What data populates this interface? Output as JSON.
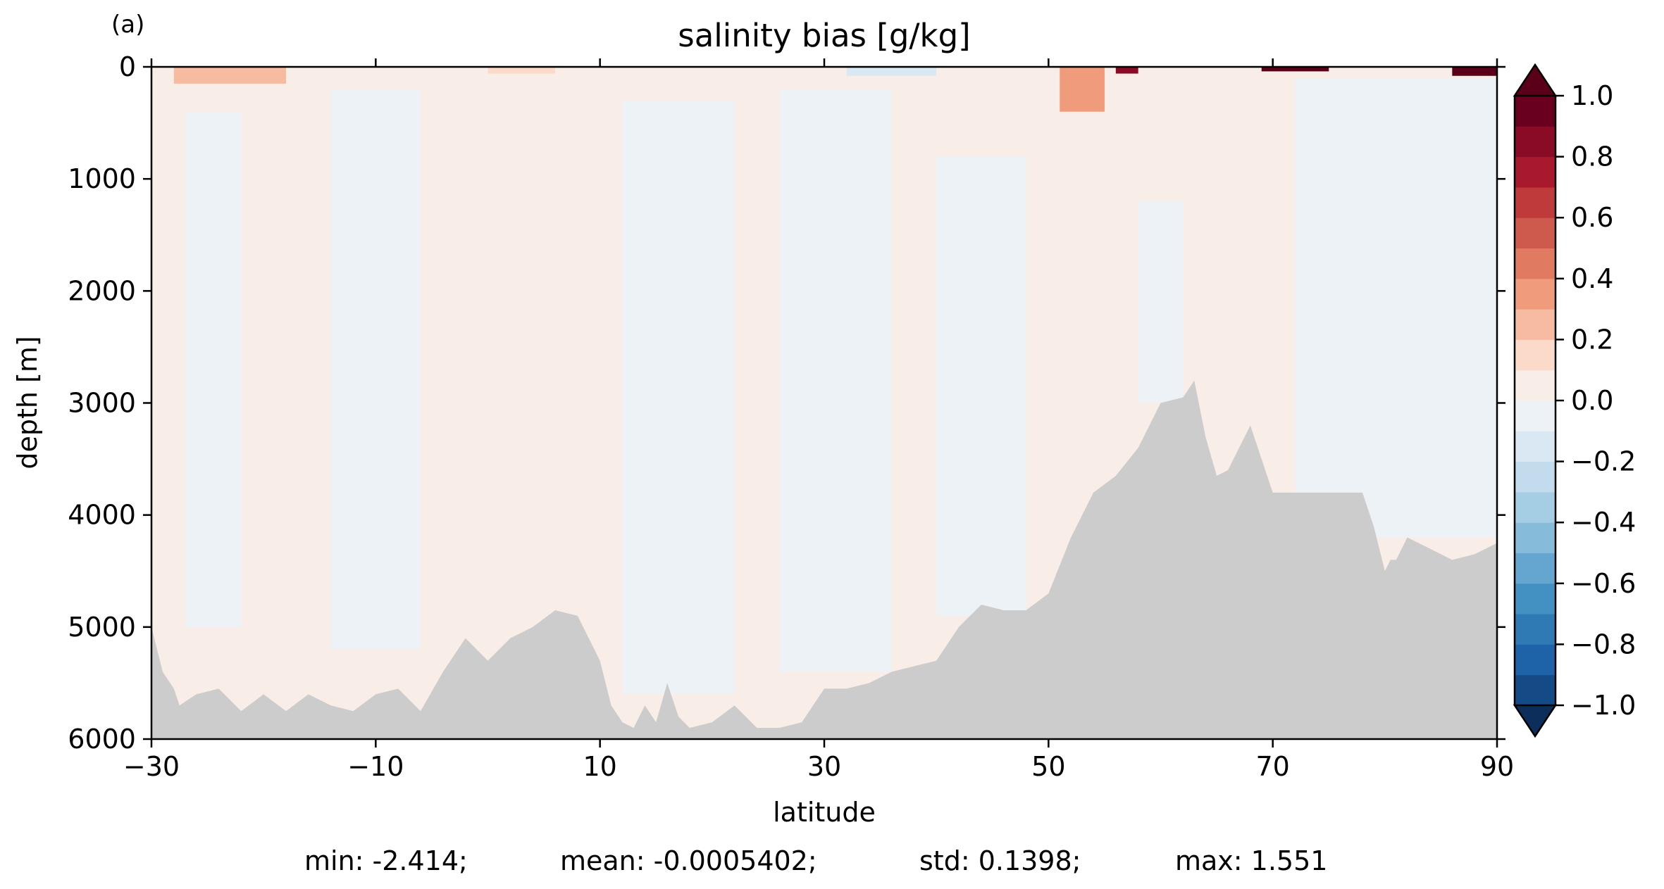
{
  "panel_label": "(a)",
  "chart_data": {
    "type": "heatmap",
    "title": "salinity bias [g/kg]",
    "xlabel": "latitude",
    "ylabel": "depth [m]",
    "xlim": [
      -30,
      90
    ],
    "ylim": [
      6000,
      0
    ],
    "y_inverted": true,
    "x_ticks": [
      -30,
      -10,
      10,
      30,
      50,
      70,
      90
    ],
    "x_tick_labels": [
      "−30",
      "−10",
      "10",
      "30",
      "50",
      "70",
      "90"
    ],
    "y_ticks": [
      0,
      1000,
      2000,
      3000,
      4000,
      5000,
      6000
    ],
    "y_tick_labels": [
      "0",
      "1000",
      "2000",
      "3000",
      "4000",
      "5000",
      "6000"
    ],
    "colormap": "RdBu_r",
    "colorbar": {
      "levels": [
        -1.0,
        -0.9,
        -0.8,
        -0.7,
        -0.6,
        -0.5,
        -0.4,
        -0.3,
        -0.2,
        -0.1,
        0.0,
        0.1,
        0.2,
        0.3,
        0.4,
        0.5,
        0.6,
        0.7,
        0.8,
        0.9,
        1.0
      ],
      "colors": [
        "#144a85",
        "#1e63a8",
        "#2f79b5",
        "#4390c3",
        "#64a6cf",
        "#86bcda",
        "#a5cde3",
        "#c2dced",
        "#d9e8f2",
        "#edf2f6",
        "#f9ede7",
        "#fbdac9",
        "#f6bba1",
        "#f09c7c",
        "#e07b61",
        "#cd5a4c",
        "#bf3a3a",
        "#a9192e",
        "#8a0b26",
        "#6a0020"
      ],
      "tick_values": [
        -1.0,
        -0.8,
        -0.6,
        -0.4,
        -0.2,
        0.0,
        0.2,
        0.4,
        0.6,
        0.8,
        1.0
      ],
      "tick_labels": [
        "−1.0",
        "−0.8",
        "−0.6",
        "−0.4",
        "−0.2",
        "0.0",
        "0.2",
        "0.4",
        "0.6",
        "0.8",
        "1.0"
      ],
      "extend": "both",
      "extend_min_color": "#0b2f5a",
      "extend_max_color": "#5a0018"
    },
    "land_color": "#cccccc",
    "bathymetry": {
      "latitude": [
        -30,
        -29.5,
        -29,
        -28,
        -27.5,
        -26,
        -24,
        -22,
        -20,
        -18,
        -16,
        -14,
        -12,
        -10,
        -8,
        -6,
        -4,
        -2,
        0,
        2,
        4,
        6,
        8,
        10,
        11,
        12,
        13,
        14,
        15,
        16,
        17,
        18,
        20,
        22,
        24,
        26,
        28,
        30,
        32,
        34,
        36,
        38,
        40,
        42,
        44,
        46,
        48,
        50,
        52,
        54,
        56,
        58,
        60,
        62,
        63,
        64,
        65,
        66,
        68,
        70,
        72,
        74,
        76,
        78,
        79,
        80,
        80.5,
        81,
        82,
        84,
        86,
        88,
        90
      ],
      "depth": [
        5000,
        5200,
        5400,
        5550,
        5700,
        5600,
        5550,
        5750,
        5600,
        5750,
        5600,
        5700,
        5750,
        5600,
        5550,
        5750,
        5400,
        5100,
        5300,
        5100,
        5000,
        4850,
        4900,
        5300,
        5700,
        5850,
        5900,
        5700,
        5850,
        5500,
        5800,
        5900,
        5850,
        5700,
        5900,
        5900,
        5850,
        5550,
        5550,
        5500,
        5400,
        5350,
        5300,
        5000,
        4800,
        4850,
        4850,
        4700,
        4200,
        3800,
        3650,
        3400,
        3000,
        2950,
        2800,
        3300,
        3650,
        3600,
        3200,
        3800,
        3800,
        3800,
        3800,
        3800,
        4100,
        4500,
        4400,
        4400,
        4200,
        4300,
        4400,
        4350,
        4250
      ]
    },
    "field_pattern": [
      {
        "lat_range": [
          -30,
          90
        ],
        "depth_range": [
          0,
          6000
        ],
        "value": 0.05
      },
      {
        "lat_range": [
          -27,
          -22
        ],
        "depth_range": [
          400,
          5000
        ],
        "value": -0.05
      },
      {
        "lat_range": [
          -14,
          -6
        ],
        "depth_range": [
          200,
          5200
        ],
        "value": -0.05
      },
      {
        "lat_range": [
          12,
          22
        ],
        "depth_range": [
          300,
          5600
        ],
        "value": -0.05
      },
      {
        "lat_range": [
          26,
          36
        ],
        "depth_range": [
          200,
          5400
        ],
        "value": -0.05
      },
      {
        "lat_range": [
          40,
          48
        ],
        "depth_range": [
          800,
          4900
        ],
        "value": -0.05
      },
      {
        "lat_range": [
          58,
          62
        ],
        "depth_range": [
          1200,
          3000
        ],
        "value": -0.05
      },
      {
        "lat_range": [
          72,
          90
        ],
        "depth_range": [
          100,
          4200
        ],
        "value": -0.05
      },
      {
        "lat_range": [
          -28,
          -18
        ],
        "depth_range": [
          0,
          150
        ],
        "value": 0.25
      },
      {
        "lat_range": [
          0,
          6
        ],
        "depth_range": [
          0,
          60
        ],
        "value": 0.15
      },
      {
        "lat_range": [
          51,
          55
        ],
        "depth_range": [
          0,
          400
        ],
        "value": 0.3
      },
      {
        "lat_range": [
          56,
          58
        ],
        "depth_range": [
          0,
          60
        ],
        "value": 0.8
      },
      {
        "lat_range": [
          69,
          75
        ],
        "depth_range": [
          0,
          40
        ],
        "value": 1.0
      },
      {
        "lat_range": [
          86,
          90
        ],
        "depth_range": [
          0,
          80
        ],
        "value": 1.0
      },
      {
        "lat_range": [
          32,
          40
        ],
        "depth_range": [
          0,
          80
        ],
        "value": -0.15
      }
    ],
    "stats": {
      "min": "min: -2.414;",
      "mean": "mean: -0.0005402;",
      "std": "std: 0.1398;",
      "max": "max: 1.551"
    }
  }
}
